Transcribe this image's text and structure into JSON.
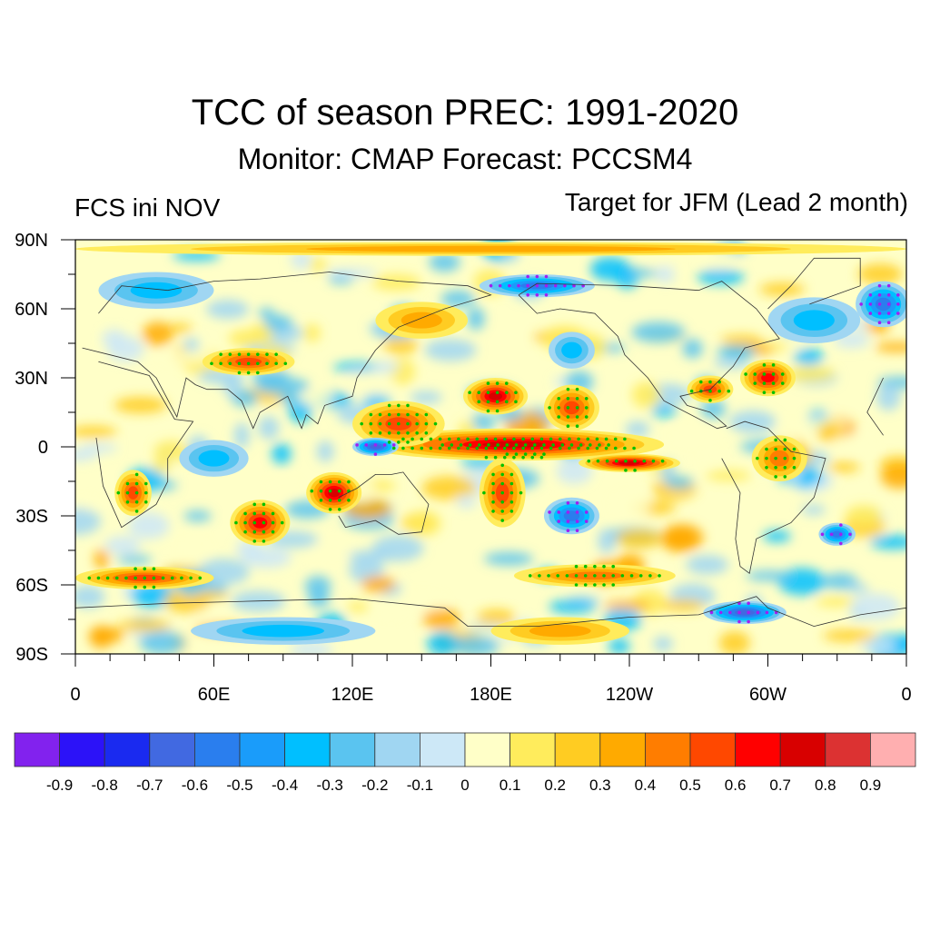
{
  "chart_data": {
    "type": "heatmap",
    "title": "TCC of season PREC: 1991-2020",
    "subtitle": "Monitor: CMAP   Forecast: PCCSM4",
    "left_string": "FCS ini NOV",
    "right_string": "Target for JFM (Lead 2 month)",
    "projection": "cylindrical-equidistant",
    "x_range": [
      0,
      360
    ],
    "y_range": [
      -90,
      90
    ],
    "x_ticks": [
      {
        "value": 0,
        "label": "0"
      },
      {
        "value": 60,
        "label": "60E"
      },
      {
        "value": 120,
        "label": "120E"
      },
      {
        "value": 180,
        "label": "180E"
      },
      {
        "value": 240,
        "label": "120W"
      },
      {
        "value": 300,
        "label": "60W"
      },
      {
        "value": 360,
        "label": "0"
      }
    ],
    "y_ticks": [
      {
        "value": 90,
        "label": "90N"
      },
      {
        "value": 60,
        "label": "60N"
      },
      {
        "value": 30,
        "label": "30N"
      },
      {
        "value": 0,
        "label": "0"
      },
      {
        "value": -30,
        "label": "30S"
      },
      {
        "value": -60,
        "label": "60S"
      },
      {
        "value": -90,
        "label": "90S"
      }
    ],
    "colorbar": {
      "levels": [
        "-0.9",
        "-0.8",
        "-0.7",
        "-0.6",
        "-0.5",
        "-0.4",
        "-0.3",
        "-0.2",
        "-0.1",
        "0",
        "0.1",
        "0.2",
        "0.3",
        "0.4",
        "0.5",
        "0.6",
        "0.7",
        "0.8",
        "0.9"
      ],
      "colors": [
        "#8222ee",
        "#2c12f8",
        "#1a2af0",
        "#4169e1",
        "#2a7eee",
        "#1a9cfa",
        "#00bfff",
        "#5ac4f0",
        "#a0d6f2",
        "#cde8f7",
        "#ffffc8",
        "#ffec5c",
        "#ffcc22",
        "#ffaa00",
        "#ff7d00",
        "#ff4800",
        "#ff0000",
        "#d80000",
        "#dc3232",
        "#ffafb0"
      ]
    },
    "regions": [
      {
        "name": "equatorial-pacific-core",
        "lon": 195,
        "lat": 0,
        "rlon": 45,
        "rlat": 4,
        "value": 0.85
      },
      {
        "name": "equatorial-pacific-band",
        "lon": 190,
        "lat": 1,
        "rlon": 65,
        "rlat": 7,
        "value": 0.7
      },
      {
        "name": "east-pacific-itcz",
        "lon": 240,
        "lat": -7,
        "rlon": 22,
        "rlat": 4,
        "value": 0.65
      },
      {
        "name": "central-north-pacific",
        "lon": 182,
        "lat": 22,
        "rlon": 14,
        "rlat": 8,
        "value": 0.65
      },
      {
        "name": "hawaii-band",
        "lon": 215,
        "lat": 17,
        "rlon": 12,
        "rlat": 10,
        "value": 0.5
      },
      {
        "name": "west-pacific-warm",
        "lon": 140,
        "lat": 10,
        "rlon": 20,
        "rlat": 10,
        "value": 0.45
      },
      {
        "name": "maritime-continent-neg",
        "lon": 130,
        "lat": 0,
        "rlon": 10,
        "rlat": 4,
        "value": -0.6
      },
      {
        "name": "north-australia",
        "lon": 112,
        "lat": -20,
        "rlon": 12,
        "rlat": 9,
        "value": 0.65
      },
      {
        "name": "south-indian-ocean",
        "lon": 80,
        "lat": -33,
        "rlon": 13,
        "rlat": 10,
        "value": 0.55
      },
      {
        "name": "spcz",
        "lon": 185,
        "lat": -20,
        "rlon": 10,
        "rlat": 15,
        "value": 0.5
      },
      {
        "name": "southern-africa",
        "lon": 25,
        "lat": -20,
        "rlon": 8,
        "rlat": 10,
        "value": 0.45
      },
      {
        "name": "atlantic-30n",
        "lon": 300,
        "lat": 30,
        "rlon": 12,
        "rlat": 8,
        "value": 0.55
      },
      {
        "name": "gulf-mexico",
        "lon": 275,
        "lat": 25,
        "rlon": 10,
        "rlat": 6,
        "value": 0.45
      },
      {
        "name": "south-pacific-neg",
        "lon": 215,
        "lat": -30,
        "rlon": 12,
        "rlat": 8,
        "value": -0.5
      },
      {
        "name": "south-atlantic-neg",
        "lon": 330,
        "lat": -38,
        "rlon": 8,
        "rlat": 5,
        "value": -0.45
      },
      {
        "name": "arctic-canada-neg",
        "lon": 200,
        "lat": 70,
        "rlon": 25,
        "rlat": 5,
        "value": -0.45
      },
      {
        "name": "greenland-east-neg",
        "lon": 350,
        "lat": 62,
        "rlon": 12,
        "rlat": 10,
        "value": -0.45
      },
      {
        "name": "europe-neg",
        "lon": 35,
        "lat": 68,
        "rlon": 25,
        "rlat": 8,
        "value": -0.35
      },
      {
        "name": "antarctic-peninsula-neg",
        "lon": 290,
        "lat": -72,
        "rlon": 18,
        "rlat": 5,
        "value": -0.55
      },
      {
        "name": "southern-ocean-band",
        "lon": 30,
        "lat": -57,
        "rlon": 30,
        "rlat": 5,
        "value": 0.45
      },
      {
        "name": "southern-ocean-band-2",
        "lon": 225,
        "lat": -56,
        "rlon": 35,
        "rlat": 5,
        "value": 0.4
      },
      {
        "name": "central-asia",
        "lon": 75,
        "lat": 37,
        "rlon": 20,
        "rlat": 6,
        "value": 0.45
      },
      {
        "name": "siberia",
        "lon": 150,
        "lat": 55,
        "rlon": 20,
        "rlat": 8,
        "value": 0.35
      },
      {
        "name": "antarctic-east",
        "lon": 90,
        "lat": -80,
        "rlon": 40,
        "rlat": 6,
        "value": -0.25
      },
      {
        "name": "antarctic-west",
        "lon": 210,
        "lat": -80,
        "rlon": 30,
        "rlat": 6,
        "value": 0.3
      },
      {
        "name": "arctic-top",
        "lon": 180,
        "lat": 86,
        "rlon": 180,
        "rlat": 3,
        "value": 0.25
      },
      {
        "name": "north-atlantic-neg",
        "lon": 320,
        "lat": 55,
        "rlon": 20,
        "rlat": 10,
        "value": -0.3
      },
      {
        "name": "north-pacific-neg",
        "lon": 215,
        "lat": 42,
        "rlon": 10,
        "rlat": 8,
        "value": -0.3
      },
      {
        "name": "indian-ocean-neg",
        "lon": 60,
        "lat": -5,
        "rlon": 15,
        "rlat": 8,
        "value": -0.3
      },
      {
        "name": "south-america-north",
        "lon": 305,
        "lat": -5,
        "rlon": 12,
        "rlat": 10,
        "value": 0.4
      }
    ],
    "stippling": "green dots mark significant positive TCC; purple dots mark significant negative TCC"
  }
}
